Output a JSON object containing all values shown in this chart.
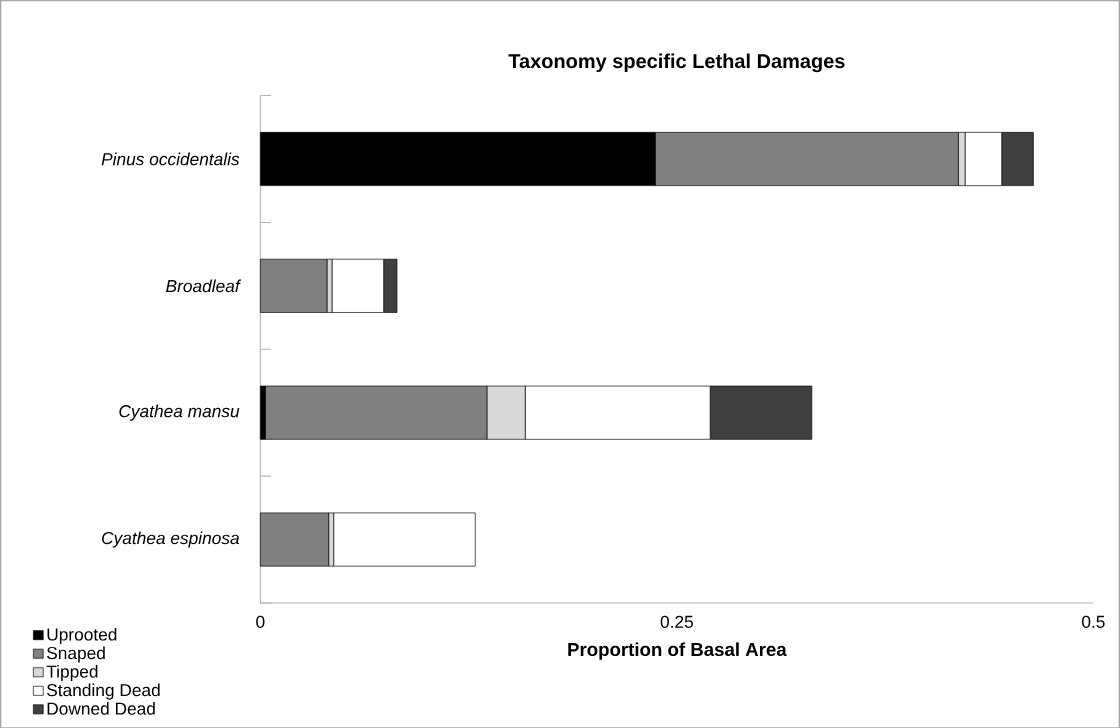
{
  "chart_data": {
    "type": "bar",
    "orientation": "horizontal",
    "stacked": true,
    "title": "Taxonomy specific Lethal Damages",
    "xlabel": "Proportion of Basal Area",
    "categories": [
      "Pinus occidentalis",
      "Broadleaf",
      "Cyathea mansu",
      "Cyathea espinosa"
    ],
    "series": [
      {
        "name": "Uprooted",
        "color": "#000000",
        "values": [
          0.237,
          0,
          0.003,
          0
        ]
      },
      {
        "name": "Snaped",
        "color": "#808080",
        "values": [
          0.182,
          0.04,
          0.133,
          0.041
        ]
      },
      {
        "name": "Tipped",
        "color": "#d9d9d9",
        "values": [
          0.004,
          0.003,
          0.023,
          0.003
        ]
      },
      {
        "name": "Standing Dead",
        "color": "#ffffff",
        "values": [
          0.022,
          0.031,
          0.111,
          0.085
        ]
      },
      {
        "name": "Downed Dead",
        "color": "#404040",
        "values": [
          0.019,
          0.008,
          0.061,
          0
        ]
      }
    ],
    "xlim": [
      0,
      0.5
    ],
    "xticks": [
      0,
      0.25,
      0.5
    ],
    "grid": false,
    "legend": "bottom left"
  }
}
